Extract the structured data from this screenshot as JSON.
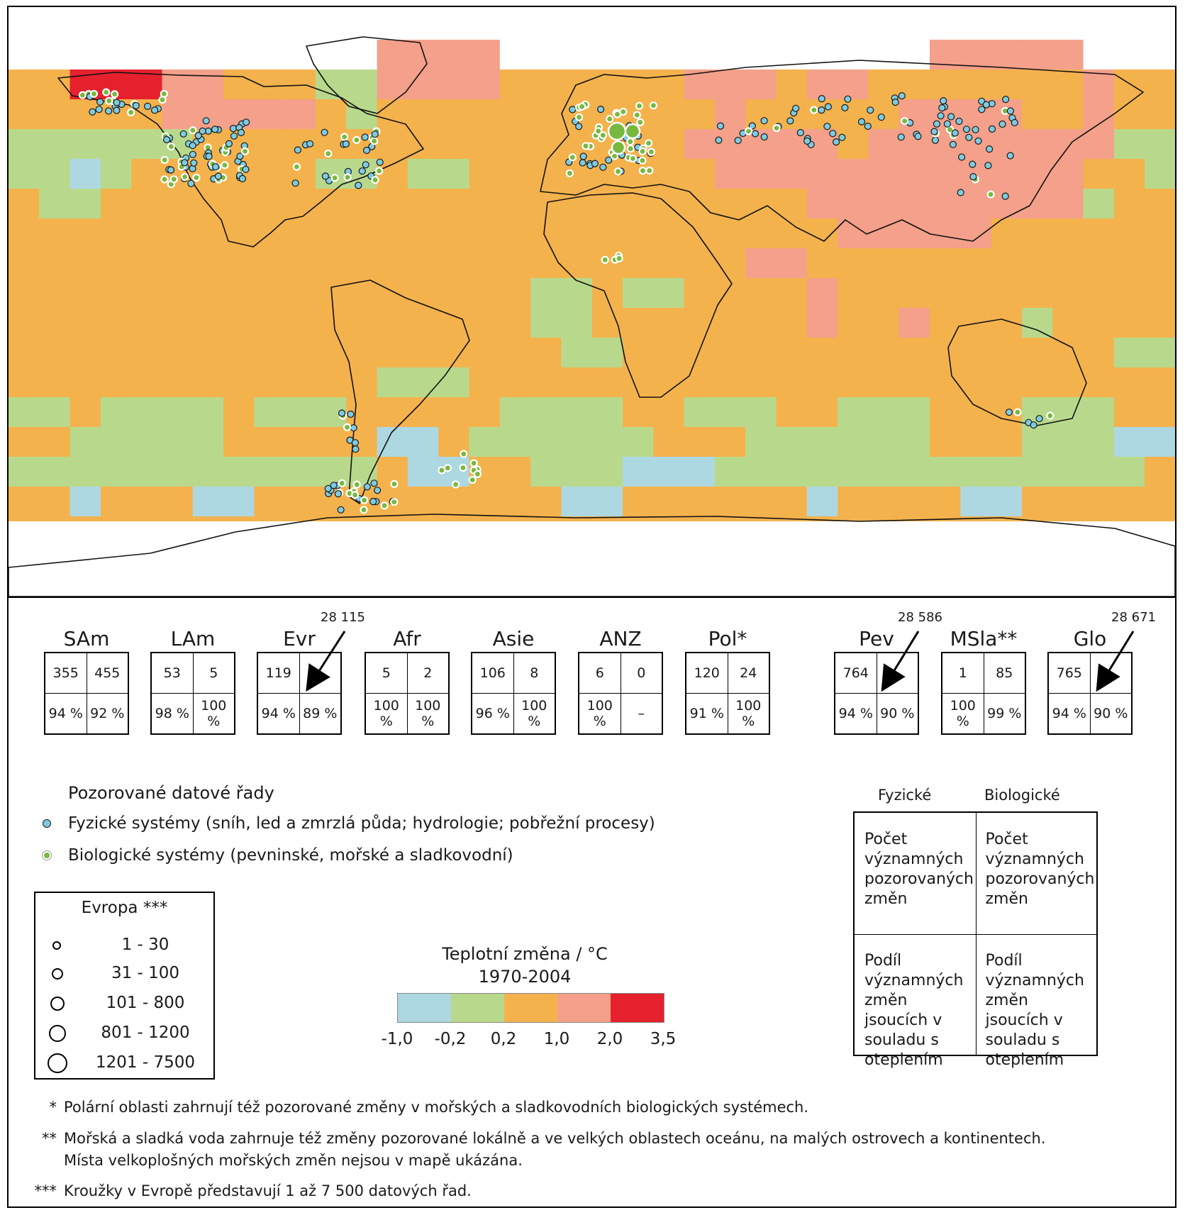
{
  "scale_colors": [
    "#add8e2",
    "#b8d98c",
    "#f4b24d",
    "#f4a08a",
    "#e5212e"
  ],
  "map_colors": {
    "ocean_base": "#f4b24d",
    "land_outline": "#111111",
    "no_data": "#ffffff"
  },
  "regions": [
    {
      "name": "SAm",
      "phys_count": "355",
      "bio_count": "455",
      "phys_pct": "94 %",
      "bio_pct": "92 %",
      "total": ""
    },
    {
      "name": "LAm",
      "phys_count": "53",
      "bio_count": "5",
      "phys_pct": "98 %",
      "bio_pct": "100 %",
      "total": ""
    },
    {
      "name": "Evr",
      "phys_count": "119",
      "bio_count": "",
      "phys_pct": "94 %",
      "bio_pct": "89 %",
      "total": "28 115"
    },
    {
      "name": "Afr",
      "phys_count": "5",
      "bio_count": "2",
      "phys_pct": "100 %",
      "bio_pct": "100 %",
      "total": ""
    },
    {
      "name": "Asie",
      "phys_count": "106",
      "bio_count": "8",
      "phys_pct": "96 %",
      "bio_pct": "100 %",
      "total": ""
    },
    {
      "name": "ANZ",
      "phys_count": "6",
      "bio_count": "0",
      "phys_pct": "100 %",
      "bio_pct": "–",
      "total": ""
    },
    {
      "name": "Pol*",
      "phys_count": "120",
      "bio_count": "24",
      "phys_pct": "91 %",
      "bio_pct": "100 %",
      "total": ""
    },
    {
      "name": "Pev",
      "phys_count": "764",
      "bio_count": "",
      "phys_pct": "94 %",
      "bio_pct": "90 %",
      "total": "28 586"
    },
    {
      "name": "MSla**",
      "phys_count": "1",
      "bio_count": "85",
      "phys_pct": "100 %",
      "bio_pct": "99 %",
      "total": ""
    },
    {
      "name": "Glo",
      "phys_count": "765",
      "bio_count": "",
      "phys_pct": "94 %",
      "bio_pct": "90 %",
      "total": "28 671"
    }
  ],
  "legend": {
    "title": "Pozorované datové řady",
    "physical": "Fyzické systémy (sníh, led a zmrzlá půda; hydrologie; pobřežní procesy)",
    "biological": "Biologické systémy (pevninské, mořské a sladkovodní)"
  },
  "europe": {
    "title": "Evropa ***",
    "sizes": [
      "1 - 30",
      "31 - 100",
      "101 - 800",
      "801 - 1200",
      "1201 - 7500"
    ]
  },
  "scale": {
    "title": "Teplotní změna / °C",
    "period": "1970-2004",
    "ticks": [
      "-1,0",
      "-0,2",
      "0,2",
      "1,0",
      "2,0",
      "3,5"
    ]
  },
  "key": {
    "physical": "Fyzické",
    "biological": "Biologické",
    "count_text": "Počet významných pozorovaných změn",
    "share_text": "Podíl významných změn jsoucích v souladu s oteplením"
  },
  "notes": [
    {
      "mark": "*",
      "lines": [
        "Polární oblasti zahrnují též pozorované změny v mořských a sladkovodních biologických systémech."
      ]
    },
    {
      "mark": "**",
      "lines": [
        "Mořská a sladká voda zahrnuje též změny pozorované lokálně a ve velkých oblastech oceánu, na malých ostrovech a kontinentech.",
        "Místa velkoplošných mořských změn nejsou v mapě ukázána."
      ]
    },
    {
      "mark": "***",
      "lines": [
        "Kroužky v Evropě představují 1 až 7 500 datových řad."
      ]
    }
  ]
}
